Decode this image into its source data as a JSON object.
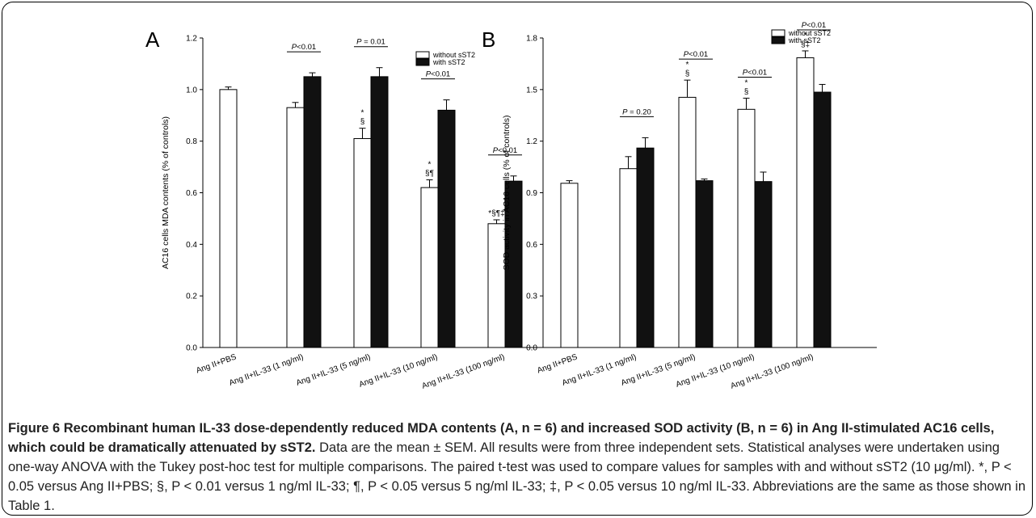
{
  "chart_data": [
    {
      "panel_label": "A",
      "type": "bar",
      "ylabel": "AC16 cells MDA contents (% of controls)",
      "ylim": [
        0,
        1.2
      ],
      "yticks": [
        "0.0",
        "0.2",
        "0.4",
        "0.6",
        "0.8",
        "1.0",
        "1.2"
      ],
      "categories": [
        "Ang II+PBS",
        "Ang II+IL-33 (1 ng/ml)",
        "Ang II+IL-33 (5 ng/ml)",
        "Ang II+IL-33 (10 ng/ml)",
        "Ang II+IL-33 (100 ng/ml)"
      ],
      "series": [
        {
          "name": "without sST2",
          "values": [
            1.0,
            0.93,
            0.81,
            0.62,
            0.48
          ],
          "errors": [
            0.01,
            0.02,
            0.04,
            0.03,
            0.015
          ]
        },
        {
          "name": "with sST2",
          "values": [
            null,
            1.05,
            1.05,
            0.92,
            0.645
          ],
          "errors": [
            null,
            0.015,
            0.035,
            0.04,
            0.02
          ]
        }
      ],
      "significance_marks": [
        "",
        "",
        "*§",
        "*§¶",
        "*§¶‡"
      ],
      "comparisons": [
        "",
        "P<0.01",
        "P = 0.01",
        "P<0.01",
        "P<0.01"
      ],
      "legend": "top-right"
    },
    {
      "panel_label": "B",
      "type": "bar",
      "ylabel": "SOD activity in AC16 cells (% of controls)",
      "ylim": [
        0,
        1.8
      ],
      "yticks": [
        "0.0",
        "0.3",
        "0.6",
        "0.9",
        "1.2",
        "1.5",
        "1.8"
      ],
      "categories": [
        "Ang II+PBS",
        "Ang II+IL-33 (1 ng/ml)",
        "Ang II+IL-33 (5 ng/ml)",
        "Ang II+IL-33 (10 ng/ml)",
        "Ang II+IL-33 (100 ng/ml)"
      ],
      "series": [
        {
          "name": "without sST2",
          "values": [
            0.955,
            1.04,
            1.455,
            1.385,
            1.685
          ],
          "errors": [
            0.015,
            0.07,
            0.1,
            0.065,
            0.04
          ]
        },
        {
          "name": "with sST2",
          "values": [
            null,
            1.16,
            0.97,
            0.965,
            1.485
          ],
          "errors": [
            null,
            0.06,
            0.01,
            0.055,
            0.045
          ]
        }
      ],
      "significance_marks": [
        "",
        "",
        "*§",
        "*§",
        "*§‡"
      ],
      "comparisons": [
        "",
        "P = 0.20",
        "P<0.01",
        "P<0.01",
        "P<0.01"
      ],
      "legend": "top-right"
    }
  ],
  "caption": {
    "title": "Figure 6 Recombinant human IL-33 dose-dependently reduced MDA contents (A, n = 6) and increased SOD activity (B, n = 6) in Ang II-stimulated AC16 cells, which could be dramatically attenuated by sST2.",
    "body": "Data are the mean ± SEM. All results were from three independent sets. Statistical analyses were undertaken using one-way ANOVA with the Tukey post-hoc test for multiple comparisons. The paired t-test was used to compare values for samples with and without sST2 (10 μg/ml). *, P < 0.05 versus Ang II+PBS; §, P < 0.01 versus 1 ng/ml IL-33; ¶, P < 0.05 versus 5 ng/ml IL-33; ‡, P < 0.05 versus 10 ng/ml IL-33. Abbreviations are the same as those shown in Table 1."
  }
}
